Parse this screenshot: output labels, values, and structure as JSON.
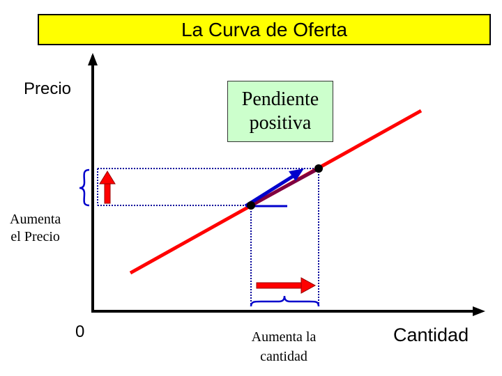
{
  "title": "La Curva de Oferta",
  "axes": {
    "y_label": "Precio",
    "x_label": "Cantidad",
    "origin_label": "0"
  },
  "annotations": {
    "slope_line1": "Pendiente",
    "slope_line2": "positiva",
    "price_increase_line1": "Aumenta",
    "price_increase_line2": "el Precio",
    "quantity_increase_line1": "Aumenta la",
    "quantity_increase_line2": "cantidad"
  },
  "colors": {
    "title_background": "#ffff00",
    "supply_curve": "#ff0000",
    "slope_box_background": "#ccffcc",
    "slope_arrow": "#0000cc",
    "brace": "#0000cc",
    "guide_lines": "#000099",
    "increase_arrows": "#ff0000"
  },
  "icons": {
    "price_arrow": "red-up-arrow",
    "quantity_arrow": "red-right-arrow",
    "points": "black-dot"
  }
}
